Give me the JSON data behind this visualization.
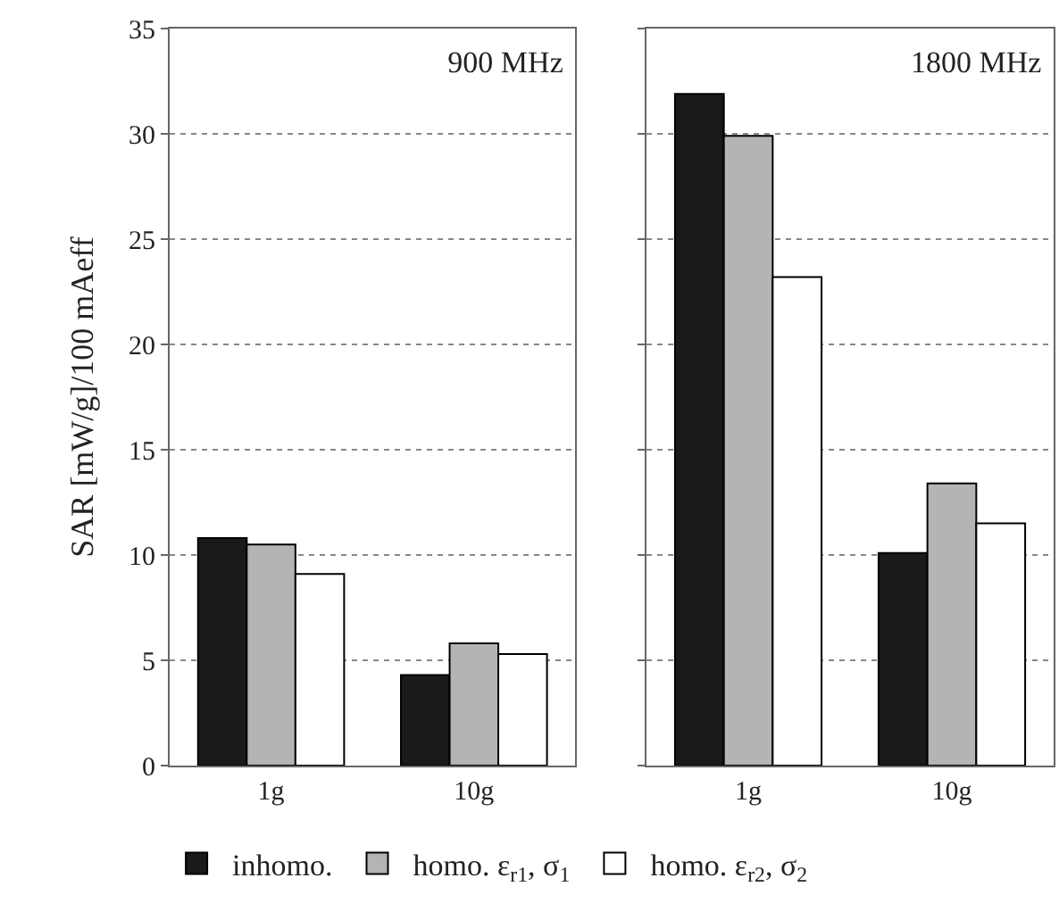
{
  "chart_data": [
    {
      "type": "bar",
      "title": "900 MHz",
      "ylabel": "SAR [mW/g]/100 mAeff",
      "categories": [
        "1g",
        "10g"
      ],
      "series": [
        {
          "name": "inhomo.",
          "color": "#1a1a1a",
          "values": [
            10.8,
            4.3
          ]
        },
        {
          "name": "homo. ε$_{r1}$, σ$_{1}$",
          "color": "#b4b4b4",
          "values": [
            10.5,
            5.8
          ]
        },
        {
          "name": "homo. ε$_{r2}$, σ$_{2}$",
          "color": "#ffffff",
          "values": [
            9.1,
            5.3
          ]
        }
      ],
      "ylim": [
        0,
        35
      ],
      "yticks": [
        0,
        5,
        10,
        15,
        20,
        25,
        30,
        35
      ],
      "grid": "y",
      "legend": "bottom"
    },
    {
      "type": "bar",
      "title": "1800 MHz",
      "categories": [
        "1g",
        "10g"
      ],
      "series": [
        {
          "color": "#1a1a1a",
          "values": [
            31.9,
            10.1
          ]
        },
        {
          "color": "#b4b4b4",
          "values": [
            29.9,
            13.4
          ]
        },
        {
          "color": "#ffffff",
          "values": [
            23.2,
            11.5
          ]
        }
      ],
      "ylim": [
        0,
        35
      ],
      "yticks": [
        0,
        5,
        10,
        15,
        20,
        25,
        30,
        35
      ],
      "grid": "y",
      "tick_labels": "x"
    }
  ]
}
